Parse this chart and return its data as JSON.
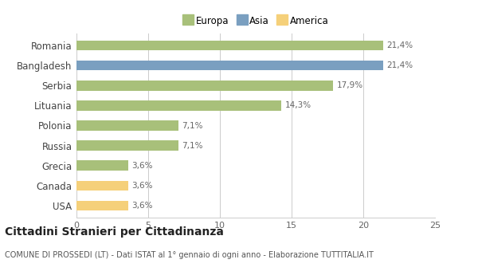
{
  "categories": [
    "Romania",
    "Bangladesh",
    "Serbia",
    "Lituania",
    "Polonia",
    "Russia",
    "Grecia",
    "Canada",
    "USA"
  ],
  "values": [
    21.4,
    21.4,
    17.9,
    14.3,
    7.1,
    7.1,
    3.6,
    3.6,
    3.6
  ],
  "labels": [
    "21,4%",
    "21,4%",
    "17,9%",
    "14,3%",
    "7,1%",
    "7,1%",
    "3,6%",
    "3,6%",
    "3,6%"
  ],
  "colors": [
    "#a8c07a",
    "#7a9fc0",
    "#a8c07a",
    "#a8c07a",
    "#a8c07a",
    "#a8c07a",
    "#a8c07a",
    "#f5d07a",
    "#f5d07a"
  ],
  "legend_labels": [
    "Europa",
    "Asia",
    "America"
  ],
  "legend_colors": [
    "#a8c07a",
    "#7a9fc0",
    "#f5d07a"
  ],
  "xlim": [
    0,
    25
  ],
  "xticks": [
    0,
    5,
    10,
    15,
    20,
    25
  ],
  "title": "Cittadini Stranieri per Cittadinanza",
  "subtitle": "COMUNE DI PROSSEDI (LT) - Dati ISTAT al 1° gennaio di ogni anno - Elaborazione TUTTITALIA.IT",
  "bg_color": "#ffffff",
  "grid_color": "#cccccc",
  "bar_height": 0.5,
  "label_fontsize": 7.5,
  "ytick_fontsize": 8.5,
  "xtick_fontsize": 8,
  "title_fontsize": 10,
  "subtitle_fontsize": 7
}
